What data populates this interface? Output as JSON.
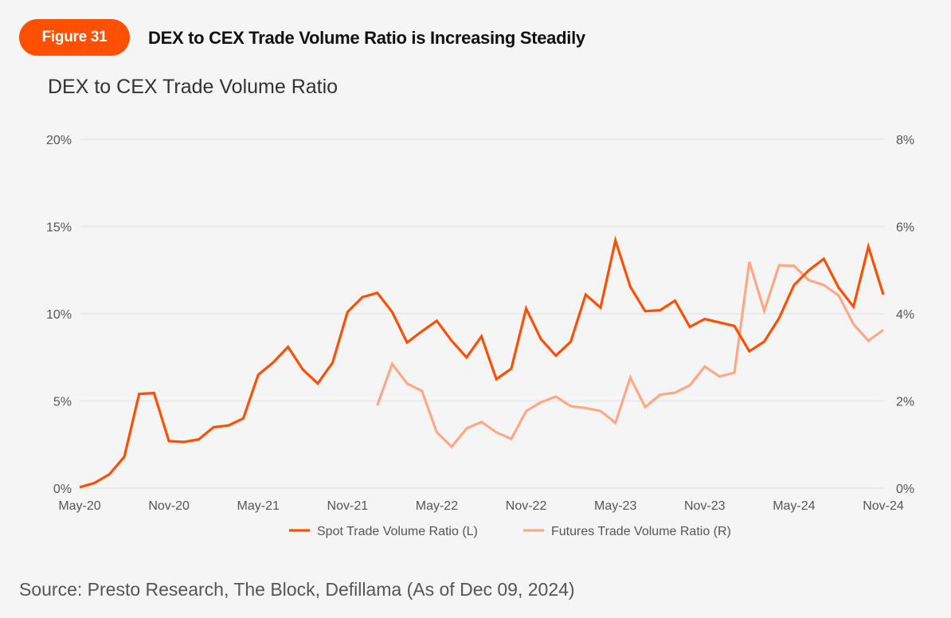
{
  "header": {
    "figure_label": "Figure 31",
    "headline": "DEX to CEX Trade Volume Ratio is Increasing Steadily",
    "accent_color": "#ff4f00"
  },
  "source": "Source: Presto Research, The Block, Defillama (As of Dec 09, 2024)",
  "chart_data": {
    "type": "line",
    "title": "DEX to CEX Trade Volume Ratio",
    "xlabel": "",
    "ylabel_left": "",
    "ylabel_right": "",
    "x_tick_labels": [
      "May-20",
      "Nov-20",
      "May-21",
      "Nov-21",
      "May-22",
      "Nov-22",
      "May-23",
      "Nov-23",
      "May-24",
      "Nov-24"
    ],
    "y_left": {
      "min": 0,
      "max": 20,
      "ticks": [
        0,
        5,
        10,
        15,
        20
      ],
      "tick_labels": [
        "0%",
        "5%",
        "10%",
        "15%",
        "20%"
      ]
    },
    "y_right": {
      "min": 0,
      "max": 8,
      "ticks": [
        0,
        2,
        4,
        6,
        8
      ],
      "tick_labels": [
        "0%",
        "2%",
        "4%",
        "6%",
        "8%"
      ]
    },
    "grid": true,
    "legend_position": "bottom",
    "x": [
      "May-20",
      "Jun-20",
      "Jul-20",
      "Aug-20",
      "Sep-20",
      "Oct-20",
      "Nov-20",
      "Dec-20",
      "Jan-21",
      "Feb-21",
      "Mar-21",
      "Apr-21",
      "May-21",
      "Jun-21",
      "Jul-21",
      "Aug-21",
      "Sep-21",
      "Oct-21",
      "Nov-21",
      "Dec-21",
      "Jan-22",
      "Feb-22",
      "Mar-22",
      "Apr-22",
      "May-22",
      "Jun-22",
      "Jul-22",
      "Aug-22",
      "Sep-22",
      "Oct-22",
      "Nov-22",
      "Dec-22",
      "Jan-23",
      "Feb-23",
      "Mar-23",
      "Apr-23",
      "May-23",
      "Jun-23",
      "Jul-23",
      "Aug-23",
      "Sep-23",
      "Oct-23",
      "Nov-23",
      "Dec-23",
      "Jan-24",
      "Feb-24",
      "Mar-24",
      "Apr-24",
      "May-24",
      "Jun-24",
      "Jul-24",
      "Aug-24",
      "Sep-24",
      "Oct-24",
      "Nov-24"
    ],
    "series": [
      {
        "name": "Spot Trade Volume Ratio (L)",
        "axis": "left",
        "color": "#ff4f00",
        "unit": "%",
        "values": [
          0.05,
          0.3,
          0.8,
          1.8,
          5.4,
          5.45,
          2.7,
          2.65,
          2.8,
          3.5,
          3.6,
          4.0,
          6.5,
          7.2,
          8.1,
          6.8,
          6.0,
          7.2,
          10.1,
          10.95,
          11.2,
          10.1,
          8.35,
          9.0,
          9.6,
          8.45,
          7.5,
          8.7,
          6.25,
          6.85,
          10.3,
          8.55,
          7.6,
          8.4,
          11.1,
          10.35,
          14.2,
          11.55,
          10.15,
          10.2,
          10.75,
          9.25,
          9.7,
          9.5,
          9.3,
          7.85,
          8.4,
          9.75,
          11.65,
          12.5,
          13.15,
          11.5,
          10.4,
          13.85,
          11.1
        ]
      },
      {
        "name": "Futures Trade Volume Ratio (R)",
        "axis": "right",
        "color": "#ffa888",
        "unit": "%",
        "values": [
          null,
          null,
          null,
          null,
          null,
          null,
          null,
          null,
          null,
          null,
          null,
          null,
          null,
          null,
          null,
          null,
          null,
          null,
          null,
          null,
          1.9,
          2.85,
          2.4,
          2.23,
          1.28,
          0.95,
          1.37,
          1.52,
          1.28,
          1.13,
          1.77,
          1.97,
          2.1,
          1.88,
          1.84,
          1.77,
          1.5,
          2.54,
          1.86,
          2.14,
          2.19,
          2.36,
          2.79,
          2.56,
          2.65,
          5.19,
          4.07,
          5.11,
          5.1,
          4.77,
          4.66,
          4.42,
          3.76,
          3.38,
          3.63
        ]
      }
    ]
  }
}
